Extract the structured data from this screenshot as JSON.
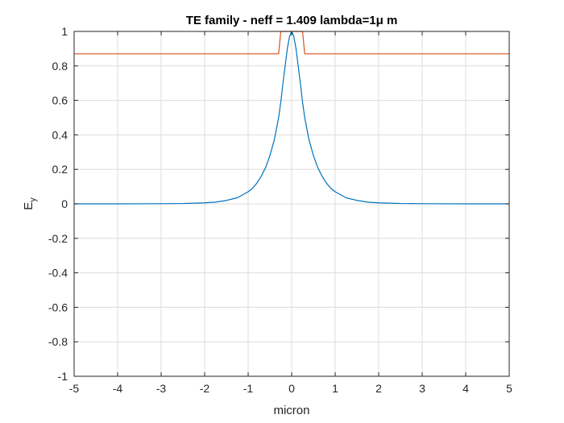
{
  "chart_data": {
    "type": "line",
    "title": "TE family - neff = 1.409  lambda=1μ m",
    "xlabel": "micron",
    "ylabel": "E",
    "ylabel_subscript": "y",
    "xlim": [
      -5,
      5
    ],
    "ylim": [
      -1,
      1
    ],
    "xticks": [
      -5,
      -4,
      -3,
      -2,
      -1,
      0,
      1,
      2,
      3,
      4,
      5
    ],
    "yticks": [
      -1,
      -0.8,
      -0.6,
      -0.4,
      -0.2,
      0,
      0.2,
      0.4,
      0.6,
      0.8,
      1
    ],
    "xtick_labels": [
      "-5",
      "-4",
      "-3",
      "-2",
      "-1",
      "0",
      "1",
      "2",
      "3",
      "4",
      "5"
    ],
    "ytick_labels": [
      "-1",
      "-0.8",
      "-0.6",
      "-0.4",
      "-0.2",
      "0",
      "0.2",
      "0.4",
      "0.6",
      "0.8",
      "1"
    ],
    "grid": true,
    "series": [
      {
        "color": "#0072BD",
        "x": [
          -5,
          -4,
          -3,
          -2.5,
          -2,
          -1.75,
          -1.5,
          -1.25,
          -1,
          -0.9,
          -0.8,
          -0.7,
          -0.6,
          -0.5,
          -0.4,
          -0.3,
          -0.25,
          -0.2,
          -0.15,
          -0.1,
          -0.05,
          0,
          0.05,
          0.1,
          0.15,
          0.2,
          0.25,
          0.3,
          0.4,
          0.5,
          0.6,
          0.7,
          0.8,
          0.9,
          1,
          1.25,
          1.5,
          1.75,
          2,
          2.5,
          3,
          4,
          5
        ],
        "y": [
          0,
          0,
          0.001,
          0.002,
          0.006,
          0.01,
          0.02,
          0.035,
          0.07,
          0.09,
          0.12,
          0.16,
          0.21,
          0.28,
          0.37,
          0.5,
          0.59,
          0.7,
          0.8,
          0.9,
          0.97,
          1,
          0.97,
          0.9,
          0.8,
          0.7,
          0.59,
          0.5,
          0.37,
          0.28,
          0.21,
          0.16,
          0.12,
          0.09,
          0.07,
          0.035,
          0.02,
          0.01,
          0.006,
          0.002,
          0.001,
          0,
          0
        ]
      },
      {
        "color": "#D95319",
        "x": [
          -5,
          -0.3,
          -0.25,
          0.25,
          0.3,
          5
        ],
        "y": [
          0.87,
          0.87,
          1,
          1,
          0.87,
          0.87
        ]
      }
    ]
  }
}
